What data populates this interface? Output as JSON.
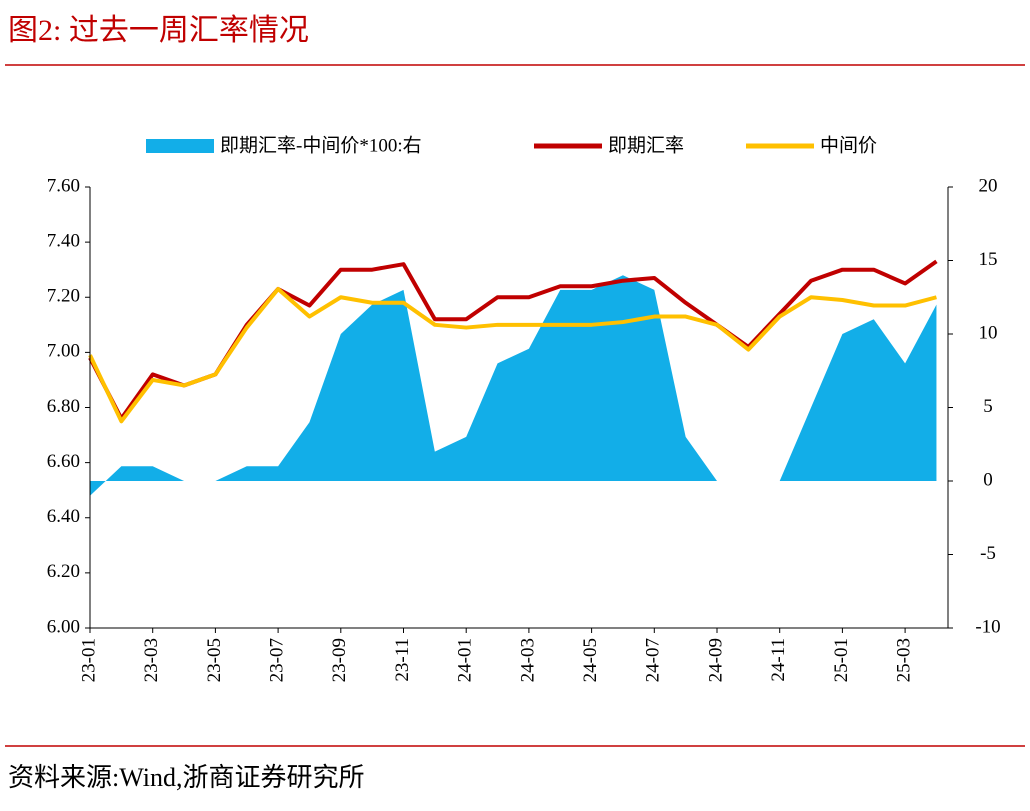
{
  "title": "图2:  过去一周汇率情况",
  "source": "资料来源:Wind,浙商证券研究所",
  "chart_data": {
    "type": "combo",
    "categories": [
      "23-01",
      null,
      "23-03",
      null,
      "23-05",
      null,
      "23-07",
      null,
      "23-09",
      null,
      "23-11",
      null,
      "24-01",
      null,
      "24-03",
      null,
      "24-05",
      null,
      "24-07",
      null,
      "24-09",
      null,
      "24-11",
      null,
      "25-01",
      null,
      "25-03",
      null
    ],
    "series": [
      {
        "name": "即期汇率-中间价*100:右",
        "kind": "area",
        "axis": "y2",
        "color": "#12aee8",
        "values": [
          -1,
          1,
          1,
          0,
          0,
          1,
          1,
          4,
          10,
          12,
          13,
          2,
          3,
          8,
          9,
          13,
          13,
          14,
          13,
          3,
          0,
          0,
          0,
          5,
          10,
          11,
          8,
          12
        ]
      },
      {
        "name": "即期汇率",
        "kind": "line",
        "color": "#c00000",
        "values": [
          6.98,
          6.76,
          6.92,
          6.88,
          6.92,
          7.1,
          7.23,
          7.17,
          7.3,
          7.3,
          7.32,
          7.12,
          7.12,
          7.2,
          7.2,
          7.24,
          7.24,
          7.26,
          7.27,
          7.18,
          7.1,
          7.02,
          7.14,
          7.26,
          7.3,
          7.3,
          7.25,
          7.33
        ]
      },
      {
        "name": "中间价",
        "kind": "line",
        "color": "#ffc000",
        "values": [
          6.99,
          6.75,
          6.9,
          6.88,
          6.92,
          7.09,
          7.23,
          7.13,
          7.2,
          7.18,
          7.18,
          7.1,
          7.09,
          7.1,
          7.1,
          7.1,
          7.1,
          7.11,
          7.13,
          7.13,
          7.1,
          7.01,
          7.13,
          7.2,
          7.19,
          7.17,
          7.17,
          7.2
        ]
      }
    ],
    "ylim": [
      6.0,
      7.6
    ],
    "yticks": [
      {
        "value": 6.0,
        "label": "6.00"
      },
      {
        "value": 6.2,
        "label": "6.20"
      },
      {
        "value": 6.4,
        "label": "6.40"
      },
      {
        "value": 6.6,
        "label": "6.60"
      },
      {
        "value": 6.8,
        "label": "6.80"
      },
      {
        "value": 7.0,
        "label": "7.00"
      },
      {
        "value": 7.2,
        "label": "7.20"
      },
      {
        "value": 7.4,
        "label": "7.40"
      },
      {
        "value": 7.6,
        "label": "7.60"
      }
    ],
    "y2lim": [
      -10,
      20
    ],
    "y2ticks": [
      -10,
      -5,
      0,
      5,
      10,
      15,
      20
    ],
    "legend": "top"
  }
}
